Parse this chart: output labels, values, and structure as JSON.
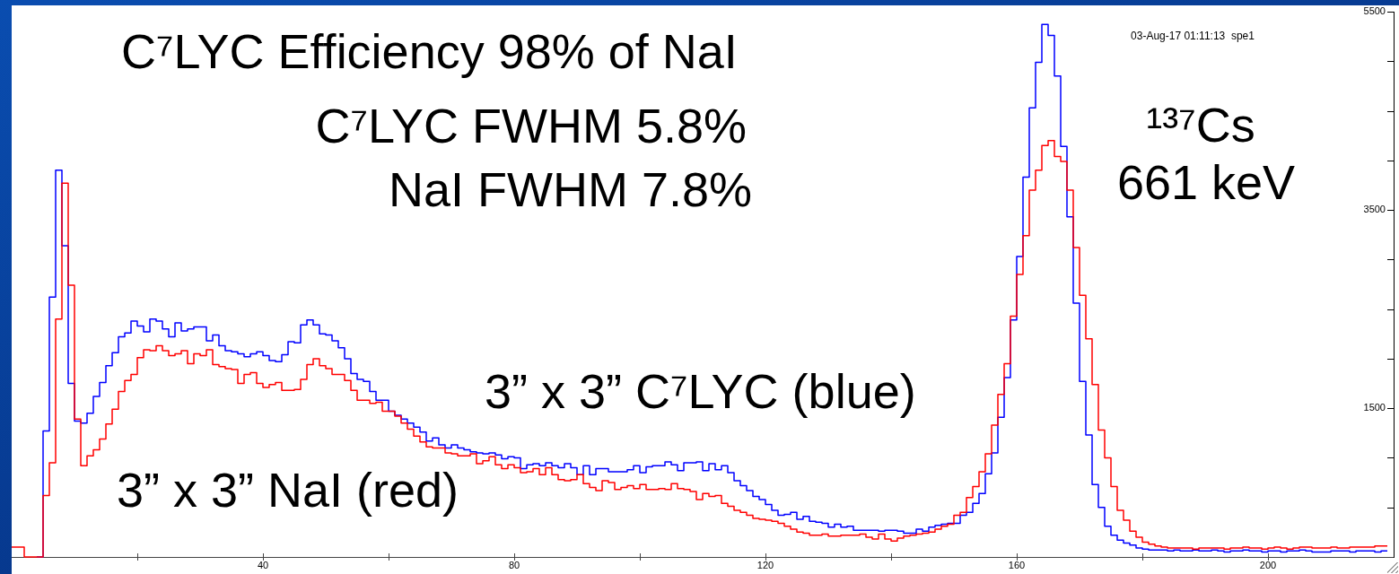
{
  "chart_data": {
    "type": "step",
    "x": [
      0,
      1,
      2,
      3,
      4,
      5,
      6,
      7,
      8,
      9,
      10,
      11,
      12,
      13,
      14,
      15,
      16,
      17,
      18,
      19,
      20,
      21,
      22,
      23,
      24,
      25,
      26,
      27,
      28,
      29,
      30,
      31,
      32,
      33,
      34,
      35,
      36,
      37,
      38,
      39,
      40,
      41,
      42,
      43,
      44,
      45,
      46,
      47,
      48,
      49,
      50,
      51,
      52,
      53,
      54,
      55,
      56,
      57,
      58,
      59,
      60,
      61,
      62,
      63,
      64,
      65,
      66,
      67,
      68,
      69,
      70,
      71,
      72,
      73,
      74,
      75,
      76,
      77,
      78,
      79,
      80,
      81,
      82,
      83,
      84,
      85,
      86,
      87,
      88,
      89,
      90,
      91,
      92,
      93,
      94,
      95,
      96,
      97,
      98,
      99,
      100,
      101,
      102,
      103,
      104,
      105,
      106,
      107,
      108,
      109,
      110,
      111,
      112,
      113,
      114,
      115,
      116,
      117,
      118,
      119,
      120,
      121,
      122,
      123,
      124,
      125,
      126,
      127,
      128,
      129,
      130,
      131,
      132,
      133,
      134,
      135,
      136,
      137,
      138,
      139,
      140,
      141,
      142,
      143,
      144,
      145,
      146,
      147,
      148,
      149,
      150,
      151,
      152,
      153,
      154,
      155,
      156,
      157,
      158,
      159,
      160,
      161,
      162,
      163,
      164,
      165,
      166,
      167,
      168,
      169,
      170,
      171,
      172,
      173,
      174,
      175,
      176,
      177,
      178,
      179,
      180,
      181,
      182,
      183,
      184,
      185,
      186,
      187,
      188,
      189,
      190,
      191,
      192,
      193,
      194,
      195,
      196,
      197,
      198,
      199,
      200,
      201,
      202,
      203,
      204,
      205,
      206,
      207,
      208,
      209,
      210,
      211,
      212,
      213,
      214,
      215,
      216,
      217,
      218,
      219
    ],
    "series": [
      {
        "name": "3” x 3” C⁷LYC (blue)",
        "color": "#0000ff",
        "x": [
          4,
          5,
          6,
          7,
          8,
          9,
          10,
          11,
          12,
          13,
          14,
          15,
          16,
          17,
          18,
          19,
          20,
          21,
          22,
          23,
          24,
          25,
          26,
          27,
          28,
          29,
          30,
          31,
          32,
          33,
          34,
          35,
          36,
          37,
          38,
          39,
          40,
          41,
          42,
          43,
          44,
          45,
          46,
          47,
          48,
          49,
          50,
          51,
          52,
          53,
          54,
          55,
          56,
          57,
          58,
          59,
          60,
          61,
          62,
          63,
          64,
          65,
          66,
          67,
          68,
          69,
          70,
          71,
          72,
          73,
          74,
          75,
          76,
          77,
          78,
          79,
          80,
          81,
          82,
          83,
          84,
          85,
          86,
          87,
          88,
          89,
          90,
          91,
          92,
          93,
          94,
          95,
          96,
          97,
          98,
          99,
          100,
          101,
          102,
          103,
          104,
          105,
          106,
          107,
          108,
          109,
          110,
          111,
          112,
          113,
          114,
          115,
          116,
          117,
          118,
          119,
          120,
          121,
          122,
          123,
          124,
          125,
          126,
          127,
          128,
          129,
          130,
          131,
          132,
          133,
          134,
          135,
          136,
          137,
          138,
          139,
          140,
          141,
          142,
          143,
          144,
          145,
          146,
          147,
          148,
          149,
          150,
          151,
          152,
          153,
          154,
          155,
          156,
          157,
          158,
          159,
          160,
          161,
          162,
          163,
          164,
          165,
          166,
          167,
          168,
          169,
          170,
          171,
          172,
          173,
          174,
          175,
          176,
          177,
          178,
          179,
          180,
          181,
          182,
          183,
          184,
          185,
          186,
          187,
          188,
          189,
          190,
          191,
          192,
          193,
          194,
          195,
          196,
          197,
          198,
          199,
          200,
          201,
          202,
          203,
          204,
          205,
          206,
          207,
          208,
          209,
          210,
          211,
          212,
          213,
          214,
          215,
          216,
          217,
          218,
          219
        ],
        "values": [
          0,
          1270,
          2620,
          3900,
          3140,
          1750,
          1370,
          1350,
          1450,
          1620,
          1760,
          1930,
          2060,
          2220,
          2260,
          2380,
          2330,
          2270,
          2400,
          2380,
          2300,
          2220,
          2360,
          2280,
          2300,
          2320,
          2320,
          2180,
          2240,
          2130,
          2080,
          2070,
          2050,
          2020,
          2050,
          2070,
          2030,
          1980,
          1970,
          2040,
          2170,
          2160,
          2340,
          2390,
          2340,
          2250,
          2240,
          2180,
          2110,
          2000,
          1850,
          1790,
          1770,
          1670,
          1580,
          1580,
          1470,
          1430,
          1390,
          1350,
          1310,
          1260,
          1170,
          1200,
          1130,
          1100,
          1130,
          1100,
          1080,
          1060,
          1050,
          1040,
          1050,
          1030,
          990,
          1010,
          1000,
          890,
          930,
          940,
          920,
          950,
          920,
          900,
          940,
          900,
          830,
          920,
          830,
          890,
          890,
          860,
          860,
          860,
          880,
          920,
          850,
          910,
          920,
          920,
          960,
          930,
          870,
          950,
          950,
          960,
          870,
          940,
          880,
          920,
          850,
          770,
          720,
          670,
          610,
          580,
          530,
          470,
          420,
          430,
          450,
          380,
          410,
          360,
          350,
          340,
          300,
          330,
          300,
          310,
          270,
          270,
          270,
          270,
          260,
          270,
          270,
          260,
          240,
          240,
          280,
          260,
          300,
          320,
          330,
          340,
          340,
          420,
          450,
          540,
          640,
          840,
          1050,
          1410,
          1810,
          2390,
          3030,
          3830,
          4530,
          4990,
          5370,
          5260,
          4850,
          4140,
          3430,
          2560,
          1770,
          1230,
          730,
          500,
          310,
          220,
          170,
          140,
          120,
          90,
          80,
          70,
          70,
          70,
          60,
          70,
          60,
          60,
          70,
          60,
          60,
          70,
          60,
          50,
          60,
          60,
          70,
          60,
          60,
          50,
          60,
          60,
          50,
          60,
          60,
          70,
          60,
          50,
          50,
          50,
          60,
          60,
          60,
          50,
          60,
          60,
          60,
          50,
          60,
          60
        ]
      },
      {
        "name": "3” x 3” NaI (red)",
        "color": "#ff0000",
        "values": [
          100,
          100,
          0,
          0,
          0,
          620,
          950,
          2400,
          3770,
          2740,
          1390,
          920,
          1020,
          1080,
          1190,
          1340,
          1490,
          1670,
          1780,
          1840,
          2010,
          2090,
          2080,
          2130,
          2080,
          2030,
          2050,
          2080,
          1950,
          2050,
          2030,
          2090,
          1940,
          1920,
          1900,
          1890,
          1750,
          1840,
          1860,
          1750,
          1710,
          1740,
          1760,
          1680,
          1680,
          1690,
          1790,
          1940,
          2000,
          1930,
          1900,
          1840,
          1840,
          1780,
          1680,
          1580,
          1580,
          1550,
          1560,
          1470,
          1470,
          1420,
          1350,
          1290,
          1220,
          1160,
          1110,
          1100,
          1100,
          1050,
          1040,
          1020,
          1020,
          1040,
          940,
          970,
          1010,
          930,
          890,
          930,
          900,
          850,
          860,
          890,
          830,
          900,
          830,
          780,
          770,
          780,
          830,
          740,
          700,
          670,
          770,
          750,
          680,
          700,
          720,
          690,
          730,
          680,
          680,
          690,
          680,
          740,
          690,
          680,
          660,
          580,
          640,
          610,
          620,
          540,
          510,
          470,
          450,
          420,
          390,
          380,
          370,
          360,
          340,
          310,
          280,
          250,
          240,
          220,
          220,
          230,
          210,
          210,
          220,
          220,
          220,
          230,
          200,
          180,
          230,
          180,
          160,
          190,
          210,
          220,
          230,
          240,
          250,
          280,
          310,
          330,
          420,
          450,
          600,
          710,
          860,
          1040,
          1330,
          1640,
          1950,
          2430,
          2850,
          3240,
          3700,
          3900,
          4150,
          4200,
          4040,
          3990,
          3700,
          3120,
          2640,
          2200,
          1740,
          1280,
          1000,
          710,
          470,
          370,
          260,
          200,
          150,
          130,
          110,
          100,
          90,
          90,
          90,
          90,
          80,
          90,
          90,
          90,
          90,
          80,
          90,
          90,
          100,
          90,
          90,
          80,
          90,
          100,
          90,
          80,
          90,
          100,
          100,
          90,
          90,
          90,
          100,
          90,
          90,
          100,
          100,
          100,
          100,
          110,
          110,
          110
        ]
      }
    ],
    "xlim": [
      0,
      220
    ],
    "xticks": [
      {
        "value": 20,
        "label": null
      },
      40,
      {
        "value": 60,
        "label": null
      },
      80,
      {
        "value": 100,
        "label": null
      },
      120,
      {
        "value": 140,
        "label": null
      },
      160,
      {
        "value": 180,
        "label": null
      },
      200
    ],
    "ylim": [
      0,
      5500
    ],
    "yticks": [
      {
        "value": 500,
        "label": null
      },
      {
        "value": 1000,
        "label": null
      },
      1500,
      {
        "value": 2000,
        "label": null
      },
      {
        "value": 2500,
        "label": null
      },
      {
        "value": 3000,
        "label": null
      },
      3500,
      {
        "value": 4000,
        "label": null
      },
      {
        "value": 4500,
        "label": null
      },
      {
        "value": 5000,
        "label": null
      },
      5500
    ],
    "annotations": [
      "C⁷LYC Efficiency 98% of NaI",
      "C⁷LYC FWHM 5.8%",
      "NaI FWHM 7.8%",
      "¹³⁷Cs",
      "661 keV",
      "03-Aug-17 01:11:13  spe1"
    ]
  }
}
